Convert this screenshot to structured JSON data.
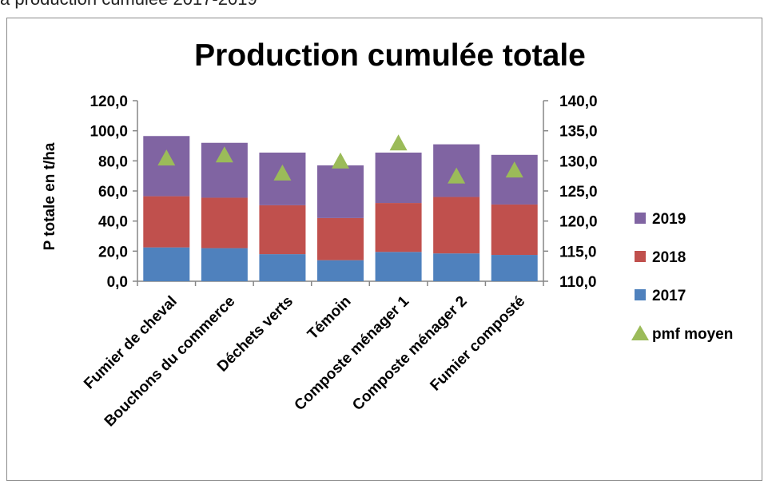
{
  "caption": "a production cumulée 2017-2019",
  "chart_data": {
    "type": "bar",
    "title": "Production cumulée totale",
    "ylabel": "P totale en t/ha",
    "xlabel": "",
    "categories": [
      "Fumier de cheval",
      "Bouchons du commerce",
      "Déchets verts",
      "Témoin",
      "Composte ménager 1",
      "Composte ménager 2",
      "Fumier composté"
    ],
    "ylim": [
      0,
      120
    ],
    "y2lim": [
      110,
      140
    ],
    "y_ticks": [
      "0,0",
      "20,0",
      "40,0",
      "60,0",
      "80,0",
      "100,0",
      "120,0"
    ],
    "y2_ticks": [
      "110,0",
      "115,0",
      "120,0",
      "125,0",
      "130,0",
      "135,0",
      "140,0"
    ],
    "stacked": true,
    "series": [
      {
        "name": "2017",
        "axis": "left",
        "color": "#4f81bd",
        "values": [
          22.5,
          22.0,
          18.0,
          14.0,
          19.5,
          18.5,
          17.5
        ]
      },
      {
        "name": "2018",
        "axis": "left",
        "color": "#c0504d",
        "values": [
          34.0,
          33.5,
          32.5,
          28.0,
          32.5,
          37.5,
          33.5
        ]
      },
      {
        "name": "2019",
        "axis": "left",
        "color": "#8064a2",
        "values": [
          40.0,
          36.5,
          35.0,
          35.0,
          33.5,
          35.0,
          33.0
        ]
      },
      {
        "name": "pmf moyen",
        "axis": "right",
        "type": "scatter",
        "marker": "triangle",
        "color": "#9bbb59",
        "values": [
          130.5,
          131.0,
          128.0,
          130.0,
          133.0,
          127.5,
          128.5
        ]
      }
    ],
    "legend_position": "right",
    "grid": false
  }
}
